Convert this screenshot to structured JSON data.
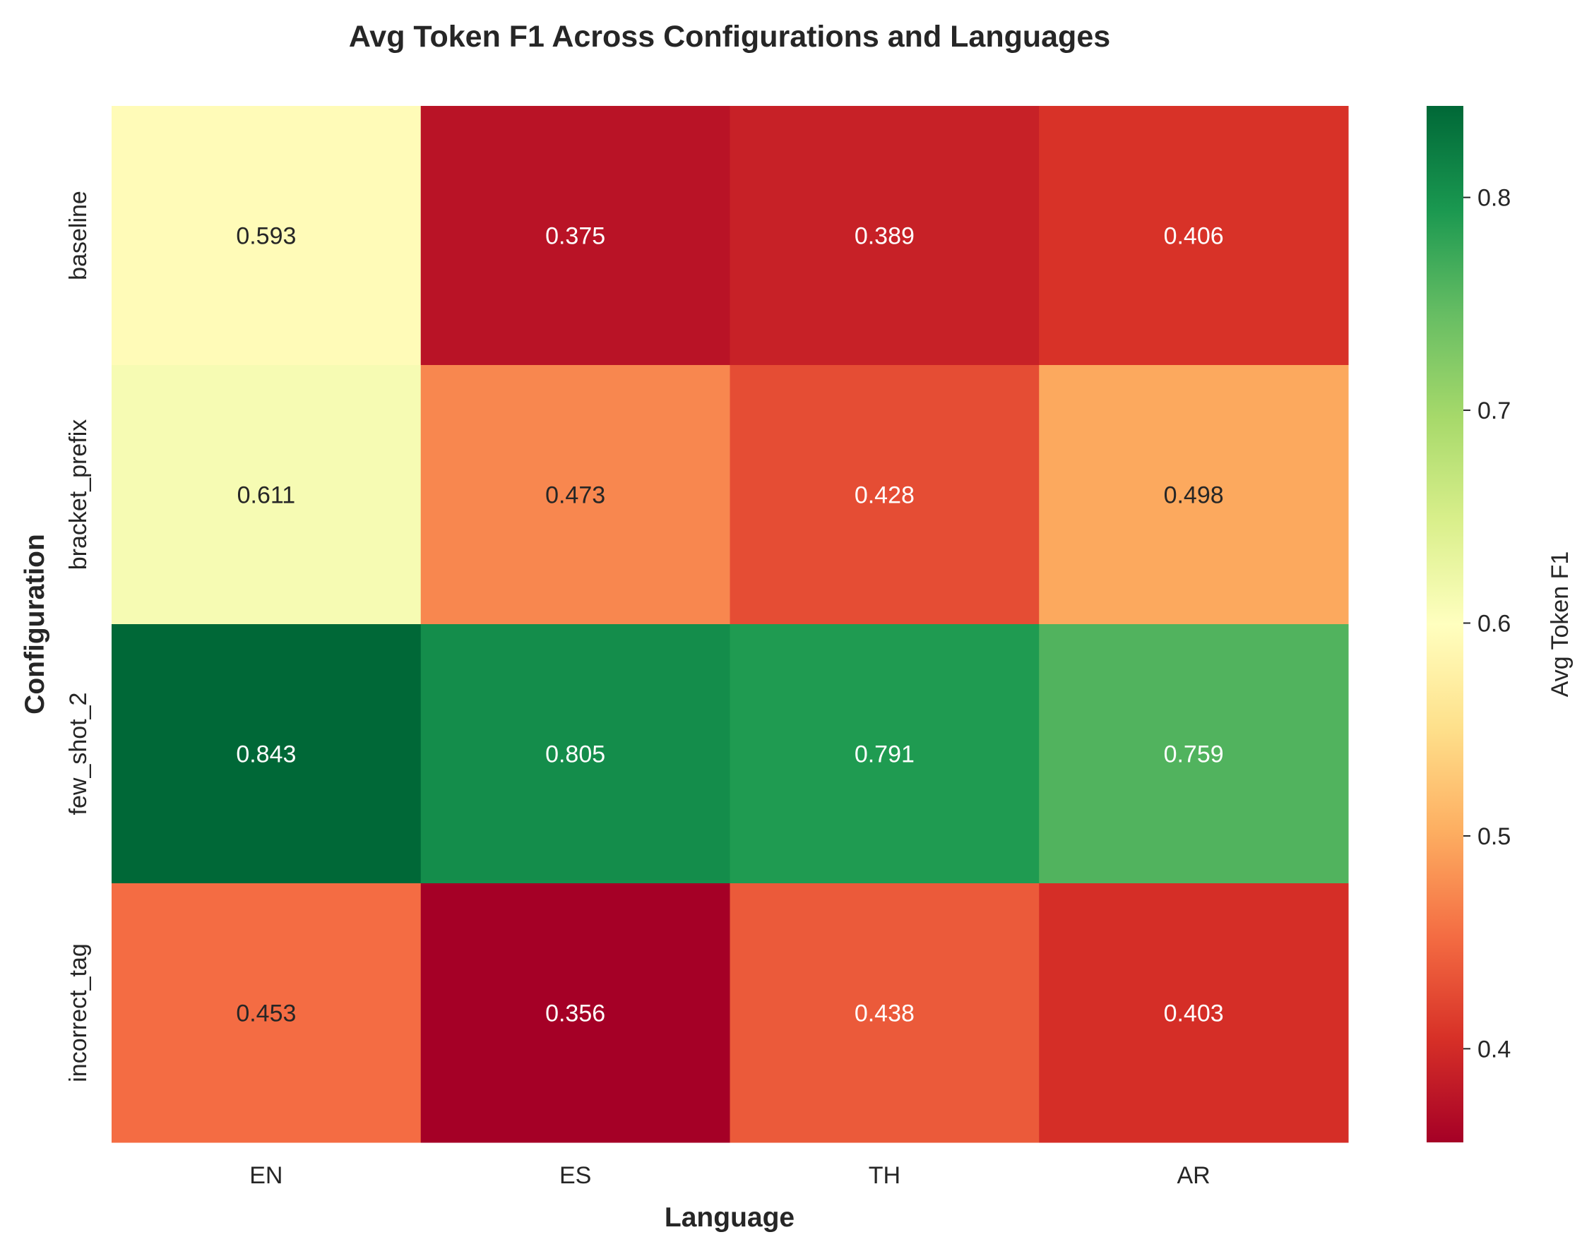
{
  "chart_data": {
    "type": "heatmap",
    "title": "Avg Token F1 Across Configurations and Languages",
    "xlabel": "Language",
    "ylabel": "Configuration",
    "x_categories": [
      "EN",
      "ES",
      "TH",
      "AR"
    ],
    "y_categories": [
      "baseline",
      "bracket_prefix",
      "few_shot_2",
      "incorrect_tag"
    ],
    "values": [
      [
        0.593,
        0.375,
        0.389,
        0.406
      ],
      [
        0.611,
        0.473,
        0.428,
        0.498
      ],
      [
        0.843,
        0.805,
        0.791,
        0.759
      ],
      [
        0.453,
        0.356,
        0.438,
        0.403
      ]
    ],
    "value_labels": [
      [
        "0.593",
        "0.375",
        "0.389",
        "0.406"
      ],
      [
        "0.611",
        "0.473",
        "0.428",
        "0.498"
      ],
      [
        "0.843",
        "0.805",
        "0.791",
        "0.759"
      ],
      [
        "0.453",
        "0.356",
        "0.438",
        "0.403"
      ]
    ],
    "colormap": "RdYlGn",
    "vmin": 0.356,
    "vmax": 0.843,
    "colorbar": {
      "label": "Avg Token F1",
      "ticks": [
        0.4,
        0.5,
        0.6,
        0.7,
        0.8
      ],
      "tick_labels": [
        "0.4",
        "0.5",
        "0.6",
        "0.7",
        "0.8"
      ]
    },
    "grid": false,
    "legend": "none"
  }
}
